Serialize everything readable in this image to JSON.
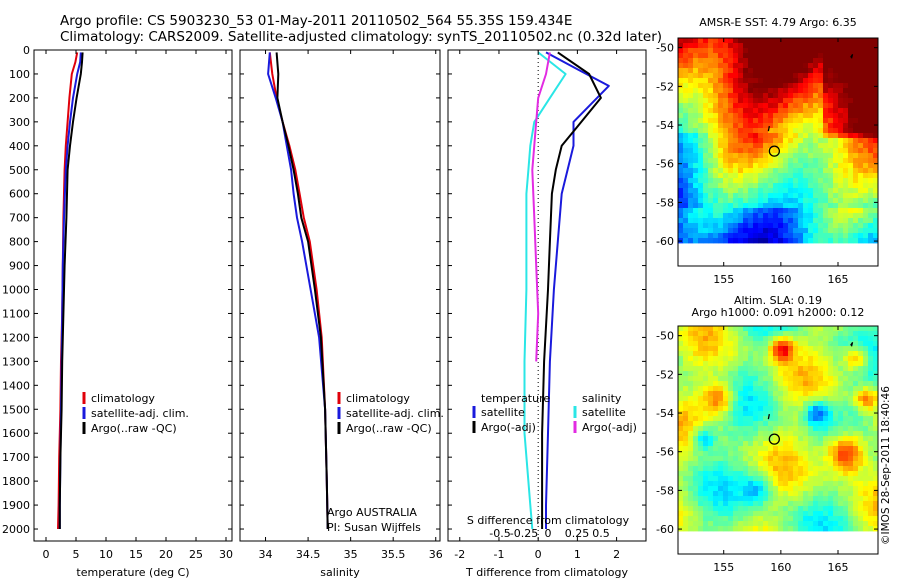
{
  "header": {
    "line1": "Argo profile: CS 5903230_53 01-May-2011 20110502_564 55.35S 159.434E",
    "line2": "Climatology: CARS2009. Satellite-adjusted climatology: synTS_20110502.nc (0.32d later)"
  },
  "colors": {
    "climatology": "#e0000a",
    "satellite": "#1a1adc",
    "argo": "#000000",
    "cyan": "#2ae6e6",
    "magenta": "#e22be2"
  },
  "chart_data": [
    {
      "type": "line",
      "xlabel": "temperature (deg C)",
      "ylabel": "",
      "xlim": [
        -2,
        31
      ],
      "ylim": [
        2050,
        0
      ],
      "xticks": [
        0,
        5,
        10,
        15,
        20,
        25,
        30
      ],
      "yticks": [
        0,
        100,
        200,
        300,
        400,
        500,
        600,
        700,
        800,
        900,
        1000,
        1100,
        1200,
        1300,
        1400,
        1500,
        1600,
        1700,
        1800,
        1900,
        2000
      ],
      "legend": [
        "climatology",
        "satellite-adj. clim.",
        "Argo(..raw -QC)"
      ],
      "series": [
        {
          "name": "climatology",
          "x": [
            5.2,
            4.9,
            4.3,
            3.9,
            3.6,
            3.3,
            3.1,
            2.9,
            2.8,
            2.7,
            2.5,
            2.4,
            2.2,
            2.1,
            2.0
          ],
          "y": [
            10,
            50,
            100,
            200,
            300,
            400,
            500,
            700,
            900,
            1100,
            1300,
            1500,
            1700,
            1900,
            2000
          ]
        },
        {
          "name": "satellite-adj. clim.",
          "x": [
            5.8,
            5.7,
            5.2,
            4.5,
            4.0,
            3.6,
            3.3,
            3.0,
            2.8,
            2.7,
            2.6,
            2.5,
            2.4,
            2.3,
            2.3
          ],
          "y": [
            10,
            50,
            100,
            200,
            300,
            400,
            500,
            700,
            900,
            1100,
            1300,
            1500,
            1700,
            1900,
            2000
          ]
        },
        {
          "name": "Argo(..raw -QC)",
          "x": [
            6.1,
            6.0,
            5.8,
            5.1,
            4.5,
            4.0,
            3.6,
            3.4,
            3.1,
            2.9,
            2.7,
            2.6,
            2.4,
            2.3,
            2.3
          ],
          "y": [
            10,
            50,
            100,
            200,
            300,
            400,
            500,
            700,
            900,
            1100,
            1300,
            1500,
            1700,
            1900,
            2000
          ]
        }
      ]
    },
    {
      "type": "line",
      "xlabel": "salinity",
      "xlim": [
        33.7,
        36.05
      ],
      "ylim": [
        2050,
        0
      ],
      "xticks": [
        34,
        34.5,
        35,
        35.5,
        36
      ],
      "legend": [
        "climatology",
        "satellite-adj. clim.",
        "Argo(..raw -QC)"
      ],
      "annotations": [
        "Argo AUSTRALIA",
        "PI: Susan Wijffels"
      ],
      "series": [
        {
          "name": "climatology",
          "x": [
            34.05,
            34.08,
            34.13,
            34.2,
            34.28,
            34.35,
            34.4,
            34.45,
            34.52,
            34.6,
            34.66,
            34.7,
            34.72,
            34.73
          ],
          "y": [
            10,
            100,
            200,
            300,
            400,
            500,
            600,
            700,
            800,
            1000,
            1200,
            1500,
            1800,
            2000
          ]
        },
        {
          "name": "satellite-adj. clim.",
          "x": [
            34.05,
            34.03,
            34.12,
            34.2,
            34.25,
            34.3,
            34.33,
            34.37,
            34.43,
            34.53,
            34.63,
            34.7,
            34.72,
            34.73
          ],
          "y": [
            10,
            100,
            200,
            300,
            400,
            500,
            600,
            700,
            800,
            1000,
            1200,
            1500,
            1800,
            2000
          ]
        },
        {
          "name": "Argo(..raw -QC)",
          "x": [
            34.13,
            34.15,
            34.14,
            34.2,
            34.27,
            34.33,
            34.38,
            34.42,
            34.5,
            34.58,
            34.65,
            34.7,
            34.72,
            34.73
          ],
          "y": [
            10,
            100,
            200,
            300,
            400,
            500,
            600,
            700,
            800,
            1000,
            1200,
            1500,
            1800,
            2000
          ]
        }
      ]
    },
    {
      "type": "line",
      "xlabel": "T difference from climatology",
      "xlabel2": "S difference from climatology",
      "xlim": [
        -2.3,
        2.75
      ],
      "ylim": [
        2050,
        0
      ],
      "xticks": [
        -2,
        -1,
        0,
        1,
        2
      ],
      "xticks2": [
        "-0.5",
        "-0.25",
        "0",
        "0.25",
        "0.5"
      ],
      "legend_groups": [
        {
          "heading": "temperature",
          "items": [
            "satellite",
            "Argo(-adj)"
          ]
        },
        {
          "heading": "salinity",
          "items": [
            "satellite",
            "Argo(-adj)"
          ]
        }
      ],
      "series": [
        {
          "name": "temperature satellite",
          "x": [
            0.2,
            1.0,
            1.8,
            0.9,
            0.9,
            0.75,
            0.6,
            0.5,
            0.4,
            0.3,
            0.25,
            0.2,
            0.2
          ],
          "y": [
            10,
            80,
            150,
            300,
            400,
            500,
            600,
            800,
            1000,
            1300,
            1600,
            1900,
            2000
          ]
        },
        {
          "name": "temperature Argo(-adj)",
          "x": [
            0.5,
            1.3,
            1.6,
            1.1,
            0.6,
            0.45,
            0.35,
            0.3,
            0.25,
            0.15,
            0.1,
            0.1,
            0.1
          ],
          "y": [
            10,
            100,
            200,
            300,
            400,
            500,
            600,
            800,
            1000,
            1300,
            1600,
            1900,
            2000
          ]
        },
        {
          "name": "salinity satellite",
          "x": [
            0.0,
            0.7,
            0.3,
            -0.1,
            -0.2,
            -0.25,
            -0.3,
            -0.3,
            -0.3,
            -0.35,
            -0.35,
            -0.2,
            -0.15
          ],
          "y": [
            10,
            100,
            200,
            300,
            400,
            500,
            600,
            800,
            1000,
            1300,
            1600,
            1900,
            2000
          ]
        },
        {
          "name": "salinity Argo(-adj)",
          "x": [
            0.3,
            0.2,
            0.0,
            -0.05,
            -0.15,
            -0.1,
            -0.05,
            0.0,
            -0.05
          ],
          "y": [
            10,
            100,
            200,
            300,
            500,
            700,
            900,
            1100,
            1300
          ]
        }
      ]
    },
    {
      "type": "heatmap",
      "title": "AMSR-E SST: 4.79 Argo: 6.35",
      "xticks": [
        155,
        160,
        165
      ],
      "yticks": [
        -50,
        -52,
        -54,
        -56,
        -58,
        -60
      ],
      "xlim": [
        151,
        168.5
      ],
      "ylim": [
        -60.1,
        -49.5
      ],
      "marker": {
        "x": 159.43,
        "y": -55.35
      }
    },
    {
      "type": "heatmap",
      "title_line1": "Altim. SLA: 0.19",
      "title_line2": "Argo h1000: 0.091 h2000: 0.12",
      "xticks": [
        155,
        160,
        165
      ],
      "yticks": [
        -50,
        -52,
        -54,
        -56,
        -58,
        -60
      ],
      "xlim": [
        151,
        168.5
      ],
      "ylim": [
        -60.1,
        -49.5
      ],
      "marker": {
        "x": 159.43,
        "y": -55.35
      }
    }
  ],
  "stamp": "©IMOS 28-Sep-2011 18:40:46"
}
